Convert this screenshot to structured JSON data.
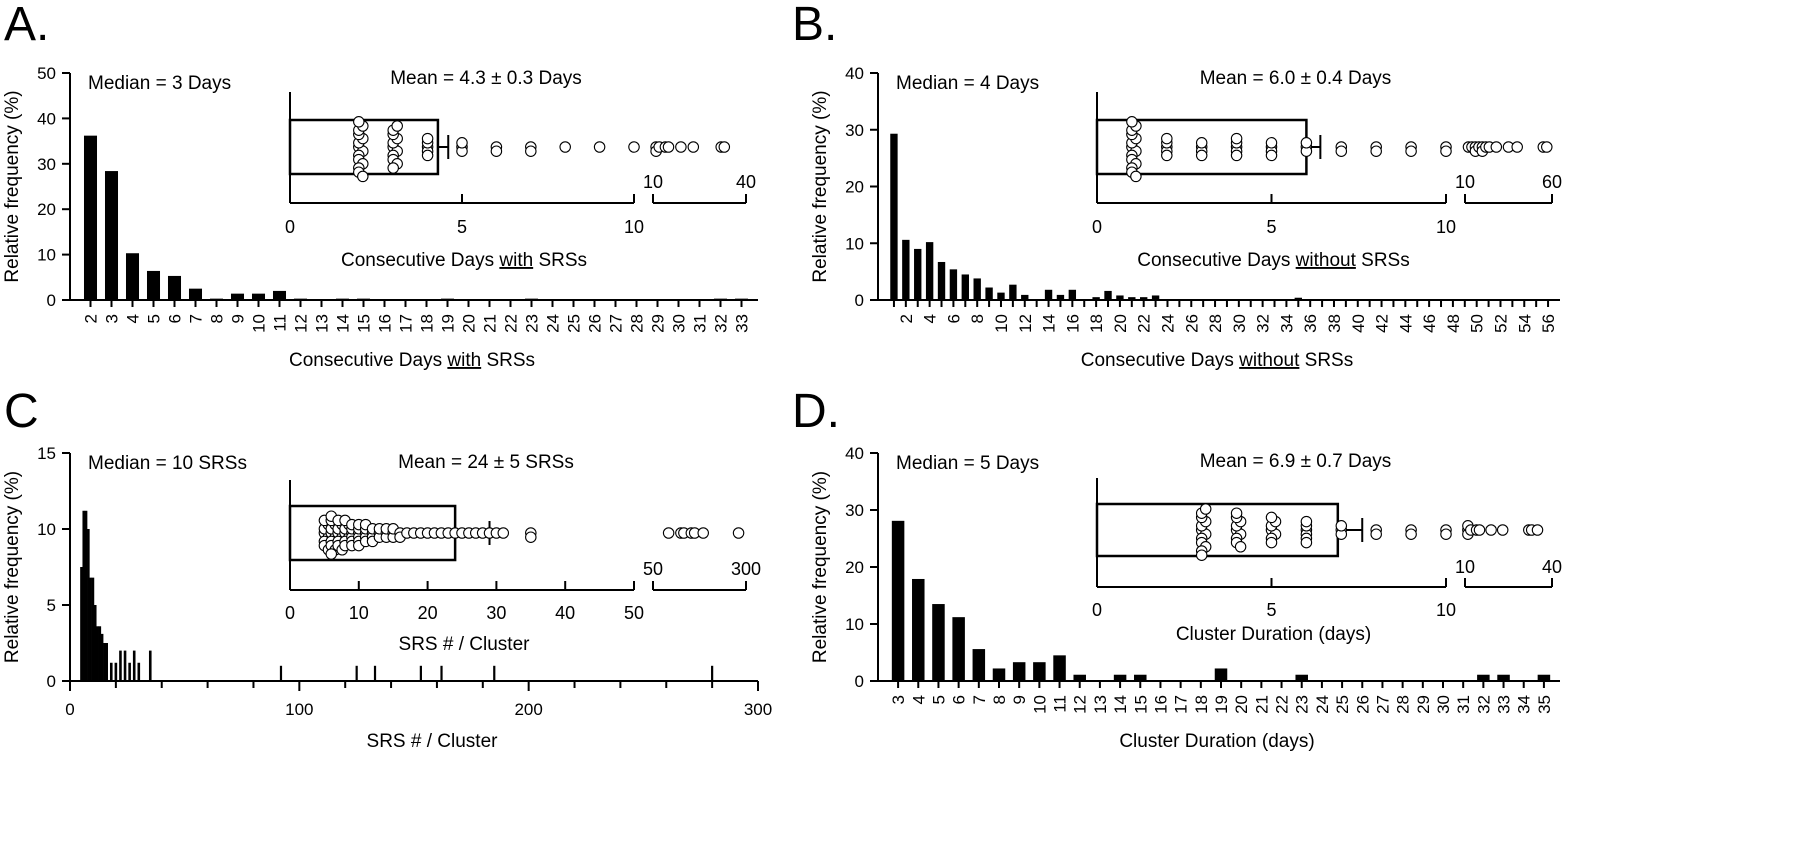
{
  "chart_data": [
    {
      "panel": "A.",
      "type": "bar",
      "xlabel": {
        "pre": "Consecutive Days ",
        "ul": "with",
        "post": " SRSs"
      },
      "ylabel": "Relative frequency (%)",
      "ylim": [
        0,
        50
      ],
      "yticks": [
        0,
        10,
        20,
        30,
        40,
        50
      ],
      "categories": [
        "2",
        "3",
        "4",
        "5",
        "6",
        "7",
        "8",
        "9",
        "10",
        "11",
        "12",
        "13",
        "14",
        "15",
        "16",
        "17",
        "18",
        "19",
        "20",
        "21",
        "22",
        "23",
        "24",
        "25",
        "26",
        "27",
        "28",
        "29",
        "30",
        "31",
        "32",
        "33"
      ],
      "values": [
        36.2,
        28.4,
        10.3,
        6.4,
        5.3,
        2.5,
        0.3,
        1.4,
        1.4,
        2.0,
        0.3,
        0,
        0.3,
        0.3,
        0,
        0,
        0,
        0.3,
        0,
        0,
        0,
        0.3,
        0,
        0,
        0,
        0,
        0,
        0,
        0,
        0,
        0.3,
        0.3
      ],
      "annotation": "Median = 3 Days",
      "inset": {
        "title": "Mean = 4.3 ± 0.3 Days",
        "xlabel": {
          "pre": "Consecutive Days ",
          "ul": "with",
          "post": " SRSs"
        },
        "mean": 4.3,
        "sem": 0.3,
        "seg1_range": [
          0,
          10
        ],
        "seg1_ticks": [
          0,
          5,
          10
        ],
        "seg2_range": [
          10,
          40
        ],
        "seg2_ticks": [
          10,
          40
        ],
        "seg2_tick_labels": [
          "10",
          "40"
        ],
        "points": [
          {
            "x": 2,
            "n": 14
          },
          {
            "x": 3,
            "n": 11
          },
          {
            "x": 4,
            "n": 5
          },
          {
            "x": 5,
            "n": 3
          },
          {
            "x": 6,
            "n": 2
          },
          {
            "x": 7,
            "n": 2
          },
          {
            "x": 8,
            "n": 1
          },
          {
            "x": 9,
            "n": 1
          },
          {
            "x": 10,
            "n": 1
          },
          {
            "x": 11,
            "n": 2
          },
          {
            "x": 12,
            "n": 1
          },
          {
            "x": 14,
            "n": 1
          },
          {
            "x": 15,
            "n": 1
          },
          {
            "x": 19,
            "n": 1
          },
          {
            "x": 23,
            "n": 1
          },
          {
            "x": 32,
            "n": 1
          },
          {
            "x": 33,
            "n": 1
          }
        ]
      }
    },
    {
      "panel": "B.",
      "type": "bar",
      "xlabel": {
        "pre": "Consecutive Days ",
        "ul": "without",
        "post": " SRSs"
      },
      "ylabel": "Relative frequency (%)",
      "ylim": [
        0,
        40
      ],
      "yticks": [
        0,
        10,
        20,
        30,
        40
      ],
      "categories": [
        "1",
        "2",
        "3",
        "4",
        "5",
        "6",
        "7",
        "8",
        "9",
        "10",
        "11",
        "12",
        "13",
        "14",
        "15",
        "16",
        "17",
        "18",
        "19",
        "20",
        "21",
        "22",
        "23",
        "24",
        "25",
        "26",
        "27",
        "28",
        "29",
        "30",
        "31",
        "32",
        "33",
        "34",
        "35",
        "36",
        "37",
        "38",
        "39",
        "40",
        "41",
        "42",
        "43",
        "44",
        "45",
        "46",
        "47",
        "48",
        "49",
        "50",
        "51",
        "52",
        "53",
        "54",
        "55",
        "56"
      ],
      "tick_labels": [
        "",
        "2",
        "",
        "4",
        "",
        "6",
        "",
        "8",
        "",
        "10",
        "",
        "12",
        "",
        "14",
        "",
        "16",
        "",
        "18",
        "",
        "20",
        "",
        "22",
        "",
        "24",
        "",
        "26",
        "",
        "28",
        "",
        "30",
        "",
        "32",
        "",
        "34",
        "",
        "36",
        "",
        "38",
        "",
        "40",
        "",
        "42",
        "",
        "44",
        "",
        "46",
        "",
        "48",
        "",
        "50",
        "",
        "52",
        "",
        "54",
        "",
        "56"
      ],
      "values": [
        29.3,
        10.6,
        9.0,
        10.2,
        6.7,
        5.4,
        4.5,
        3.8,
        2.2,
        1.3,
        2.7,
        0.9,
        0,
        1.8,
        0.9,
        1.8,
        0,
        0.5,
        1.6,
        0.8,
        0.5,
        0.5,
        0.8,
        0,
        0,
        0,
        0,
        0,
        0,
        0,
        0,
        0,
        0,
        0,
        0.4,
        0,
        0,
        0,
        0,
        0,
        0,
        0,
        0,
        0,
        0,
        0,
        0,
        0,
        0,
        0,
        0,
        0,
        0,
        0,
        0,
        0
      ],
      "annotation": "Median = 4 Days",
      "inset": {
        "title": "Mean = 6.0 ± 0.4 Days",
        "xlabel": {
          "pre": "Consecutive Days ",
          "ul": "without",
          "post": " SRSs"
        },
        "mean": 6.0,
        "sem": 0.4,
        "seg1_range": [
          0,
          10
        ],
        "seg1_ticks": [
          0,
          5,
          10
        ],
        "seg2_range": [
          10,
          60
        ],
        "seg2_ticks": [
          10,
          60
        ],
        "seg2_tick_labels": [
          "10",
          "60"
        ],
        "points": [
          {
            "x": 1,
            "n": 14
          },
          {
            "x": 2,
            "n": 5
          },
          {
            "x": 3,
            "n": 4
          },
          {
            "x": 4,
            "n": 5
          },
          {
            "x": 5,
            "n": 4
          },
          {
            "x": 6,
            "n": 3
          },
          {
            "x": 7,
            "n": 2
          },
          {
            "x": 8,
            "n": 2
          },
          {
            "x": 9,
            "n": 2
          },
          {
            "x": 10,
            "n": 2
          },
          {
            "x": 12,
            "n": 1
          },
          {
            "x": 14,
            "n": 1
          },
          {
            "x": 16,
            "n": 2
          },
          {
            "x": 18,
            "n": 1
          },
          {
            "x": 20,
            "n": 2
          },
          {
            "x": 22,
            "n": 1
          },
          {
            "x": 24,
            "n": 1
          },
          {
            "x": 28,
            "n": 1
          },
          {
            "x": 35,
            "n": 1
          },
          {
            "x": 40,
            "n": 1
          },
          {
            "x": 55,
            "n": 1
          },
          {
            "x": 57,
            "n": 1
          }
        ]
      }
    },
    {
      "panel": "C",
      "type": "bar",
      "xlabel": {
        "pre": "SRS # / Cluster",
        "ul": "",
        "post": ""
      },
      "ylabel": "Relative frequency (%)",
      "ylim": [
        0,
        15
      ],
      "yticks": [
        0,
        5,
        10,
        15
      ],
      "xlim": [
        0,
        300
      ],
      "xticks": [
        0,
        100,
        200,
        300
      ],
      "bar_x": [
        5,
        6,
        7,
        8,
        9,
        10,
        11,
        12,
        13,
        14,
        15,
        16,
        18,
        20,
        22,
        24,
        26,
        28,
        30,
        35,
        92,
        125,
        133,
        153,
        162,
        185,
        280
      ],
      "values": [
        7.5,
        11.2,
        11.2,
        10.0,
        6.8,
        6.8,
        5.0,
        3.6,
        3.6,
        3.1,
        2.5,
        2.5,
        1.2,
        1.2,
        2.0,
        2.0,
        1.2,
        2.0,
        1.2,
        2.0,
        1.0,
        1.0,
        1.0,
        1.0,
        1.0,
        1.0,
        1.0
      ],
      "annotation": "Median = 10 SRSs",
      "inset": {
        "title": "Mean = 24 ± 5 SRSs",
        "xlabel": {
          "pre": "SRS # / Cluster",
          "ul": "",
          "post": ""
        },
        "mean": 24,
        "sem": 5,
        "seg1_range": [
          0,
          50
        ],
        "seg1_ticks": [
          0,
          10,
          20,
          30,
          40,
          50
        ],
        "seg2_range": [
          50,
          300
        ],
        "seg2_ticks": [
          50,
          300
        ],
        "seg2_tick_labels": [
          "50",
          "300"
        ],
        "points": [
          {
            "x": 5,
            "n": 8
          },
          {
            "x": 6,
            "n": 10
          },
          {
            "x": 7,
            "n": 8
          },
          {
            "x": 8,
            "n": 7
          },
          {
            "x": 9,
            "n": 6
          },
          {
            "x": 10,
            "n": 6
          },
          {
            "x": 11,
            "n": 5
          },
          {
            "x": 12,
            "n": 4
          },
          {
            "x": 13,
            "n": 3
          },
          {
            "x": 14,
            "n": 3
          },
          {
            "x": 15,
            "n": 3
          },
          {
            "x": 16,
            "n": 2
          },
          {
            "x": 17,
            "n": 1
          },
          {
            "x": 18,
            "n": 1
          },
          {
            "x": 19,
            "n": 1
          },
          {
            "x": 20,
            "n": 1
          },
          {
            "x": 21,
            "n": 1
          },
          {
            "x": 22,
            "n": 1
          },
          {
            "x": 23,
            "n": 1
          },
          {
            "x": 24,
            "n": 1
          },
          {
            "x": 25,
            "n": 1
          },
          {
            "x": 26,
            "n": 1
          },
          {
            "x": 27,
            "n": 1
          },
          {
            "x": 28,
            "n": 1
          },
          {
            "x": 29,
            "n": 1
          },
          {
            "x": 30,
            "n": 1
          },
          {
            "x": 31,
            "n": 1
          },
          {
            "x": 35,
            "n": 2
          },
          {
            "x": 92,
            "n": 1
          },
          {
            "x": 125,
            "n": 1
          },
          {
            "x": 133,
            "n": 1
          },
          {
            "x": 153,
            "n": 1
          },
          {
            "x": 162,
            "n": 1
          },
          {
            "x": 185,
            "n": 1
          },
          {
            "x": 280,
            "n": 1
          }
        ]
      }
    },
    {
      "panel": "D.",
      "type": "bar",
      "xlabel": {
        "pre": "Cluster Duration (days)",
        "ul": "",
        "post": ""
      },
      "ylabel": "Relative frequency (%)",
      "ylim": [
        0,
        40
      ],
      "yticks": [
        0,
        10,
        20,
        30,
        40
      ],
      "categories": [
        "3",
        "4",
        "5",
        "6",
        "7",
        "8",
        "9",
        "10",
        "11",
        "12",
        "13",
        "14",
        "15",
        "16",
        "17",
        "18",
        "19",
        "20",
        "21",
        "22",
        "23",
        "24",
        "25",
        "26",
        "27",
        "28",
        "29",
        "30",
        "31",
        "32",
        "33",
        "34",
        "35"
      ],
      "values": [
        28.1,
        17.9,
        13.5,
        11.2,
        5.6,
        2.2,
        3.3,
        3.3,
        4.5,
        1.1,
        0,
        1.1,
        1.1,
        0,
        0,
        0,
        2.2,
        0,
        0,
        0,
        1.1,
        0,
        0,
        0,
        0,
        0,
        0,
        0,
        0,
        1.1,
        1.1,
        0,
        1.1
      ],
      "annotation": "Median = 5 Days",
      "inset": {
        "title": "Mean = 6.9 ± 0.7 Days",
        "xlabel": {
          "pre": "Cluster Duration (days)",
          "ul": "",
          "post": ""
        },
        "mean": 6.9,
        "sem": 0.7,
        "seg1_range": [
          0,
          10
        ],
        "seg1_ticks": [
          0,
          5,
          10
        ],
        "seg2_range": [
          10,
          40
        ],
        "seg2_ticks": [
          10,
          40
        ],
        "seg2_tick_labels": [
          "10",
          "40"
        ],
        "points": [
          {
            "x": 3,
            "n": 12
          },
          {
            "x": 4,
            "n": 9
          },
          {
            "x": 5,
            "n": 7
          },
          {
            "x": 6,
            "n": 6
          },
          {
            "x": 7,
            "n": 3
          },
          {
            "x": 8,
            "n": 2
          },
          {
            "x": 9,
            "n": 2
          },
          {
            "x": 10,
            "n": 2
          },
          {
            "x": 11,
            "n": 3
          },
          {
            "x": 12,
            "n": 1
          },
          {
            "x": 14,
            "n": 1
          },
          {
            "x": 15,
            "n": 1
          },
          {
            "x": 19,
            "n": 1
          },
          {
            "x": 23,
            "n": 1
          },
          {
            "x": 32,
            "n": 1
          },
          {
            "x": 33,
            "n": 1
          },
          {
            "x": 35,
            "n": 1
          }
        ]
      }
    }
  ]
}
